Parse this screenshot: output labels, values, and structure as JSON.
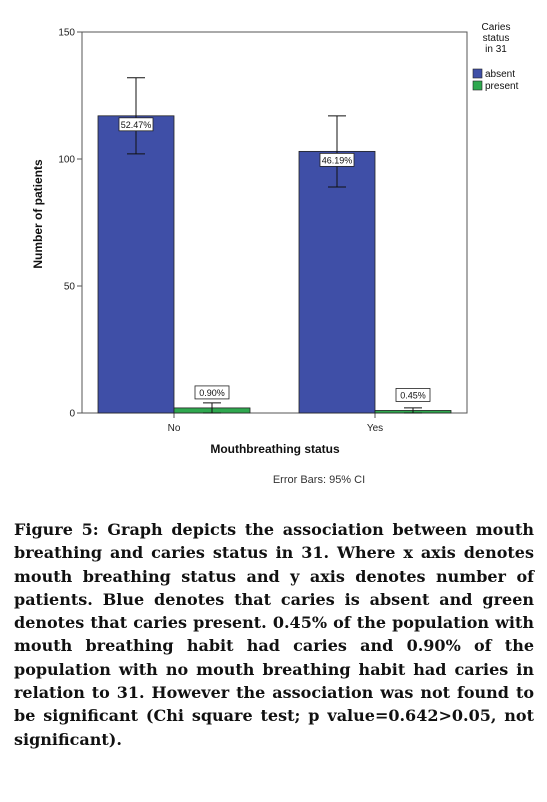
{
  "chart_data": {
    "type": "bar",
    "xlabel": "Mouthbreathing status",
    "ylabel": "Number of patients",
    "categories": [
      "No",
      "Yes"
    ],
    "ylim": [
      0,
      150
    ],
    "yticks": [
      0,
      50,
      100,
      150
    ],
    "series": [
      {
        "name": "absent",
        "color": "#3f4fa7",
        "values": [
          117,
          103
        ],
        "error_low": [
          102,
          89
        ],
        "error_high": [
          132,
          117
        ],
        "labels": [
          "52.47%",
          "46.19%"
        ]
      },
      {
        "name": "present",
        "color": "#2fa84f",
        "values": [
          2,
          1
        ],
        "error_low": [
          0,
          0
        ],
        "error_high": [
          4,
          2
        ],
        "labels": [
          "0.90%",
          "0.45%"
        ]
      }
    ],
    "legend": {
      "title": [
        "Caries",
        "status",
        "in 31"
      ],
      "placement": "top-right"
    },
    "note": "Error Bars: 95% CI",
    "grid": false
  },
  "caption": "Figure 5: Graph depicts the association between mouth breathing and caries status in 31. Where x axis denotes mouth breathing status and y axis denotes number of patients. Blue denotes that caries is absent and green denotes that caries present. 0.45% of the population with mouth breathing habit had caries and 0.90% of the population with no mouth breathing habit had caries in relation to 31. However the association was not found to be significant (Chi square test; p value=0.642>0.05, not significant)."
}
